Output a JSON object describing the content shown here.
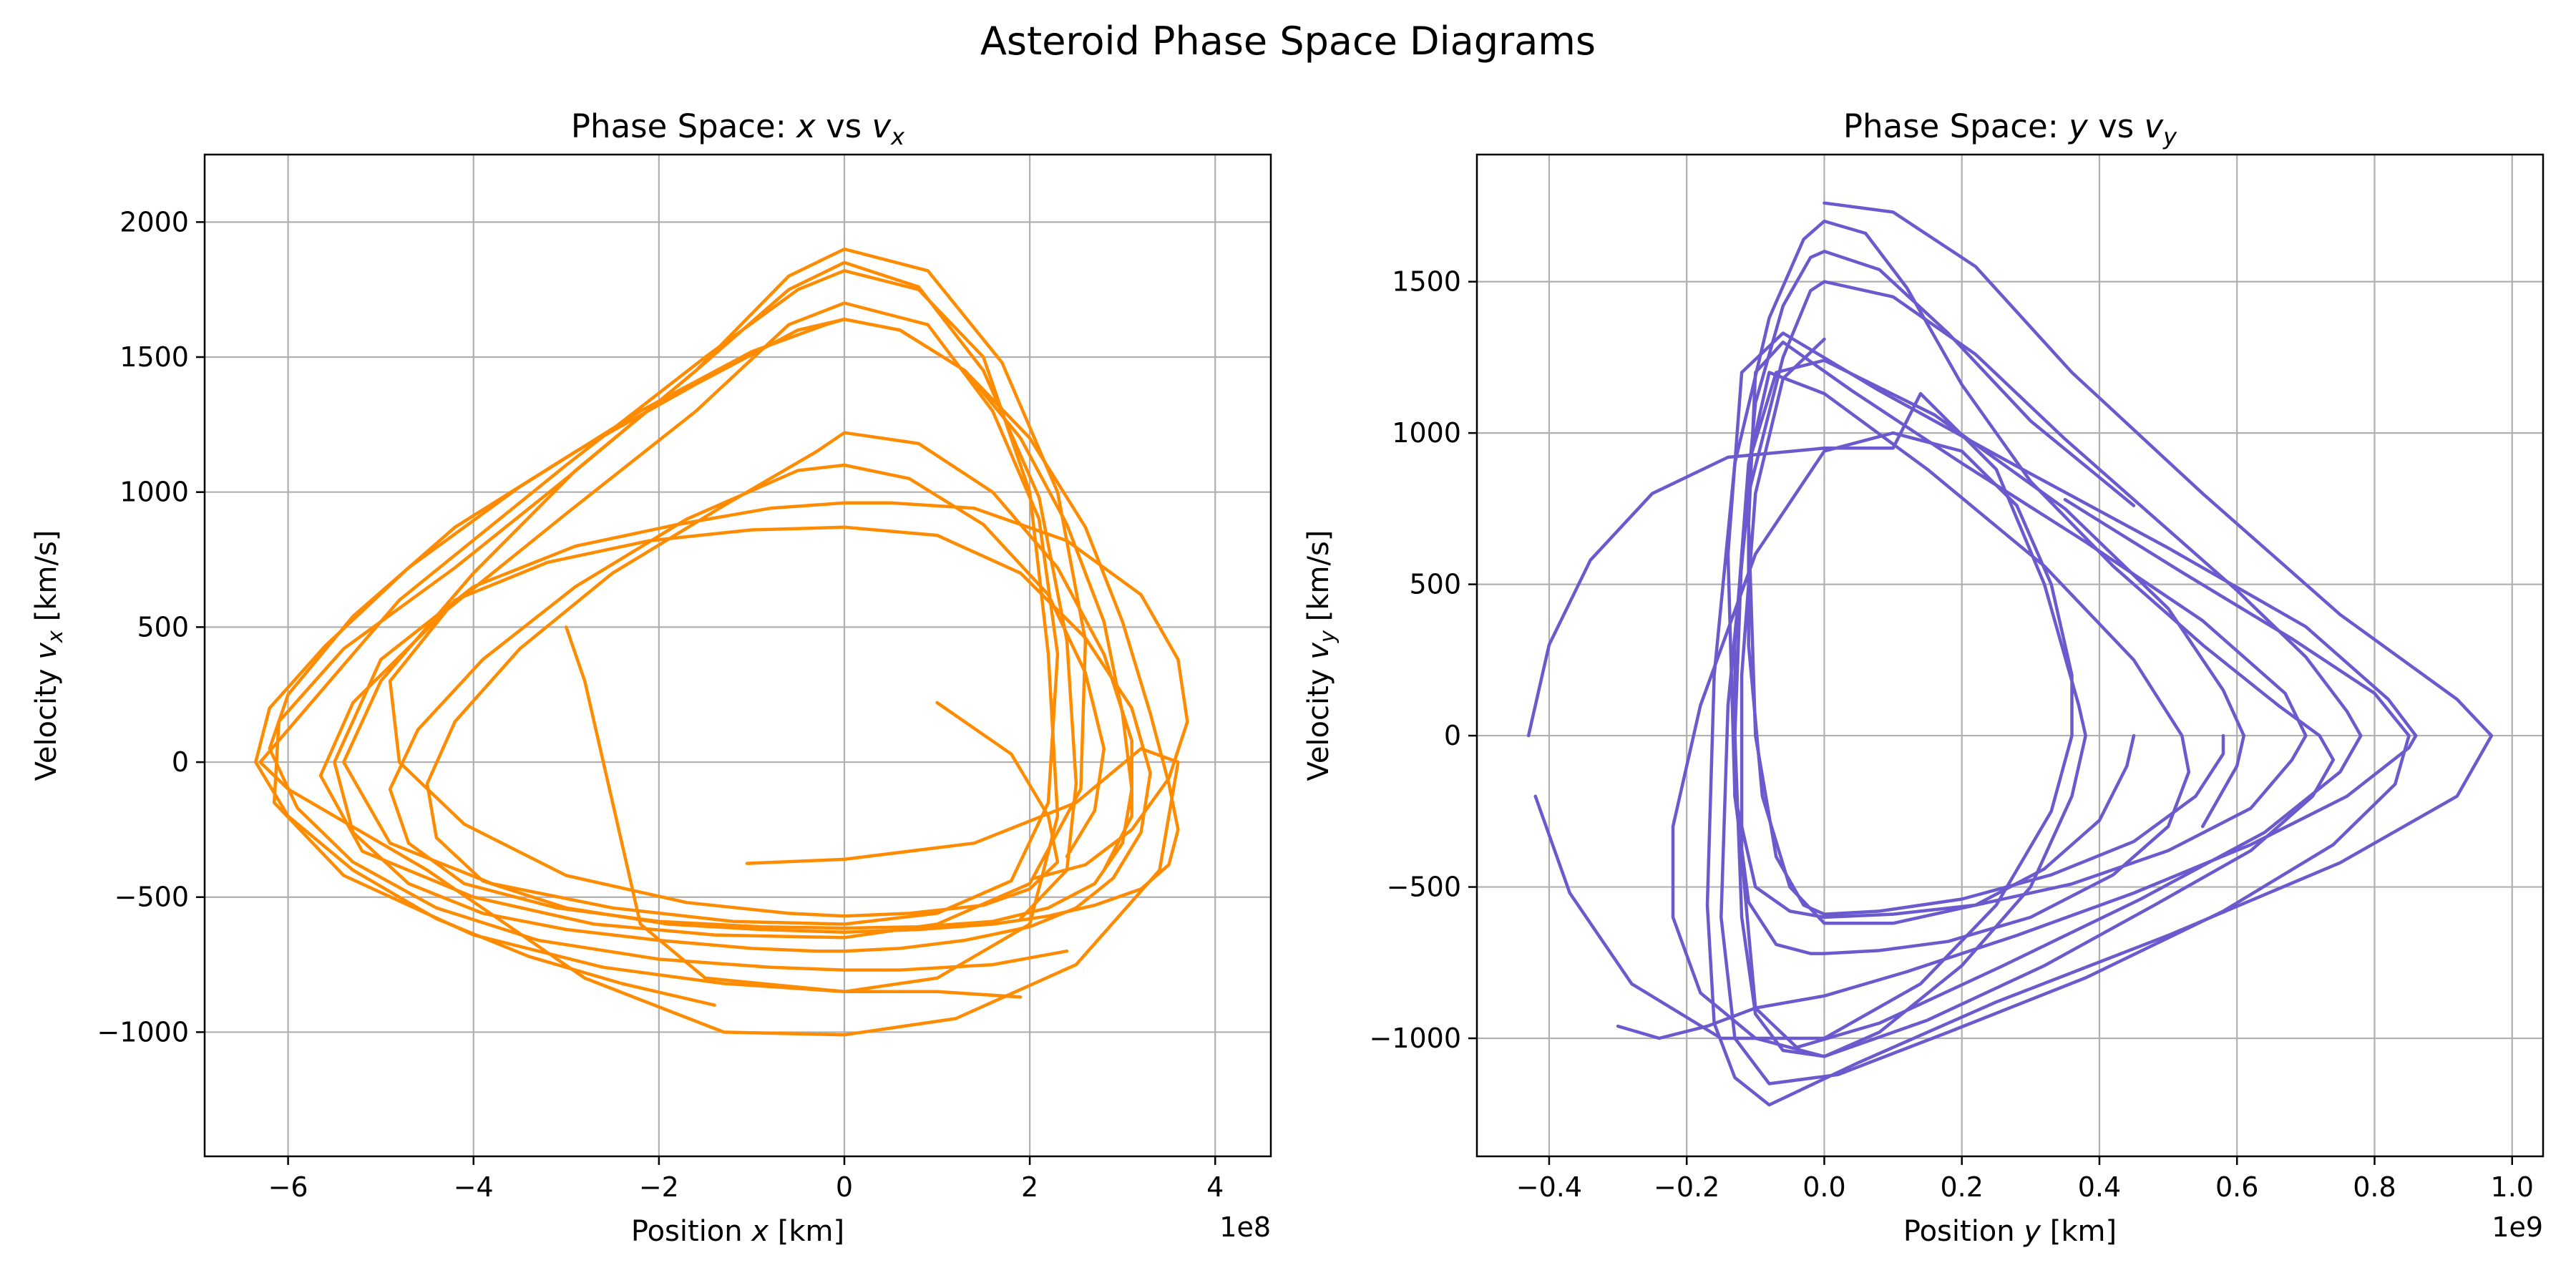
{
  "figure": {
    "suptitle": "Asteroid Phase Space Diagrams"
  },
  "chart_data": [
    {
      "type": "line",
      "title_prefix": "Phase Space: ",
      "title_var": "x",
      "title_mid": " vs ",
      "title_var2": "v",
      "title_sub": "x",
      "xlabel_prefix": "Position ",
      "xlabel_var": "x",
      "xlabel_suffix": " [km]",
      "ylabel_prefix": "Velocity ",
      "ylabel_var": "v",
      "ylabel_sub": "x",
      "ylabel_suffix": " [km/s]",
      "x_offset_text": "1e8",
      "x_scale": 100000000,
      "xlim": [
        -6.9,
        4.6
      ],
      "ylim": [
        -1460,
        2250
      ],
      "xticks": [
        -6,
        -4,
        -2,
        0,
        2,
        4
      ],
      "xtick_labels": [
        "−6",
        "−4",
        "−2",
        "0",
        "2",
        "4"
      ],
      "yticks": [
        -1000,
        -500,
        0,
        500,
        1000,
        1500,
        2000
      ],
      "ytick_labels": [
        "−1000",
        "−500",
        "0",
        "500",
        "1000",
        "1500",
        "2000"
      ],
      "grid": true,
      "color": "#ff8c00",
      "series": [
        {
          "x": [
            -1.05,
            0,
            1.4,
            2.5,
            3.2,
            3.6,
            3.4,
            2.5,
            1.2,
            0,
            -1.3,
            -2.8,
            -4.5,
            -6.0,
            -6.3,
            -5.8,
            -4.8,
            -3.0,
            -1.5,
            -0.5,
            0,
            0.8,
            1.5,
            2.0,
            2.2,
            2.3,
            2.0,
            1.0,
            0,
            -1.5,
            -2.2,
            -2.8,
            -3.0
          ],
          "y": [
            -375,
            -360,
            -300,
            -150,
            50,
            0,
            -400,
            -750,
            -950,
            -1010,
            -1000,
            -800,
            -400,
            -100,
            0,
            200,
            600,
            1100,
            1500,
            1750,
            1820,
            1750,
            1500,
            1000,
            400,
            -200,
            -600,
            -800,
            -850,
            -800,
            -600,
            300,
            500
          ]
        },
        {
          "x": [
            1.9,
            1.0,
            0,
            -1.3,
            -2.6,
            -4.0,
            -5.4,
            -6.15,
            -6.1,
            -5.4,
            -4.2,
            -3.0,
            -1.6,
            -0.6,
            0,
            0.9,
            1.7,
            2.3,
            2.6,
            2.55,
            2.0,
            1.0,
            0,
            -1.4,
            -2.7,
            -4.0,
            -5.2,
            -5.65,
            -5.3,
            -4.3,
            -3.0,
            -1.6,
            -0.6,
            0,
            0.9,
            1.6,
            2.1,
            2.3,
            2.2,
            1.8,
            1.0,
            0,
            -1.2,
            -2.5,
            -3.8,
            -4.9,
            -5.4,
            -5.0,
            -4.0,
            -2.9,
            -1.6,
            -0.6,
            0,
            0.8,
            1.5,
            2.1,
            2.4,
            2.5,
            2.4,
            1.9
          ],
          "y": [
            -870,
            -850,
            -850,
            -820,
            -760,
            -640,
            -420,
            -150,
            150,
            420,
            720,
            1050,
            1450,
            1800,
            1900,
            1820,
            1480,
            1000,
            450,
            -100,
            -450,
            -600,
            -650,
            -640,
            -600,
            -500,
            -330,
            -50,
            220,
            560,
            920,
            1300,
            1620,
            1700,
            1620,
            1300,
            900,
            400,
            -150,
            -440,
            -560,
            -600,
            -590,
            -540,
            -450,
            -300,
            0,
            300,
            700,
            1080,
            1450,
            1750,
            1850,
            1760,
            1450,
            980,
            450,
            -80,
            -400,
            -580
          ]
        },
        {
          "x": [
            2.05,
            2.6,
            3.1,
            3.5,
            3.7,
            3.6,
            3.2,
            2.4,
            1.4,
            0.5,
            0,
            -0.8,
            -1.8,
            -2.9,
            -4.0,
            -5.0,
            -5.5,
            -5.3,
            -4.7,
            -3.9,
            -3.0,
            -2.0,
            -1.0,
            -0.3,
            0,
            0.6,
            1.3,
            2.0,
            2.5,
            2.9,
            3.2,
            3.3,
            3.1,
            2.6,
            1.9,
            1.0,
            0,
            -1.0,
            -2.1,
            -3.2,
            -4.2,
            -4.9,
            -4.8,
            -4.1,
            -3.0,
            -1.7,
            -0.6,
            0,
            0.7,
            1.5,
            2.0,
            2.3,
            2.2,
            1.8,
            1.0
          ],
          "y": [
            -430,
            -380,
            -250,
            -60,
            150,
            380,
            620,
            820,
            940,
            960,
            960,
            940,
            880,
            800,
            650,
            380,
            0,
            -260,
            -450,
            -560,
            -620,
            -660,
            -690,
            -700,
            -700,
            -690,
            -660,
            -610,
            -540,
            -430,
            -260,
            -40,
            200,
            460,
            700,
            840,
            870,
            860,
            820,
            740,
            600,
            300,
            0,
            -230,
            -420,
            -520,
            -560,
            -570,
            -560,
            -530,
            -470,
            -370,
            -200,
            30,
            220
          ]
        },
        {
          "x": [
            2.4,
            1.6,
            0.6,
            0,
            -0.8,
            -2.0,
            -3.3,
            -4.4,
            -5.3,
            -5.9,
            -6.2,
            -6.0,
            -5.3,
            -4.2,
            -2.9,
            -1.6,
            -0.5,
            0,
            0.6,
            1.3,
            2.0,
            2.6,
            3.0,
            3.3,
            3.5,
            3.6,
            3.5,
            3.2,
            2.7,
            2.2,
            1.6,
            0.8,
            0,
            -0.9,
            -1.9,
            -3.0,
            -3.9,
            -4.4,
            -4.5,
            -4.2,
            -3.5,
            -2.5,
            -1.3,
            -0.3,
            0,
            0.8,
            1.6,
            2.3,
            2.8,
            3.1,
            3.1,
            2.8
          ],
          "y": [
            -700,
            -750,
            -770,
            -770,
            -760,
            -730,
            -660,
            -540,
            -370,
            -170,
            50,
            250,
            540,
            870,
            1150,
            1400,
            1600,
            1640,
            1600,
            1450,
            1200,
            870,
            520,
            180,
            -80,
            -250,
            -380,
            -470,
            -530,
            -570,
            -600,
            -620,
            -630,
            -620,
            -600,
            -540,
            -440,
            -280,
            -80,
            150,
            420,
            700,
            950,
            1150,
            1220,
            1180,
            1000,
            720,
            400,
            80,
            -200,
            -400
          ]
        },
        {
          "x": [
            -1.4,
            -2.4,
            -3.4,
            -4.4,
            -5.3,
            -6.0,
            -6.35,
            -6.2,
            -5.6,
            -4.7,
            -3.5,
            -2.2,
            -1.0,
            -0.2,
            0,
            0.6,
            1.3,
            1.9,
            2.4,
            2.8,
            3.0,
            3.1,
            3.0,
            2.7,
            2.2,
            1.6,
            0.8,
            0,
            -0.9,
            -2.0,
            -3.1,
            -4.1,
            -4.7,
            -4.9,
            -4.6,
            -3.9,
            -2.9,
            -1.7,
            -0.5,
            0,
            0.7,
            1.5,
            2.2,
            2.6,
            2.8,
            2.7,
            2.4
          ],
          "y": [
            -900,
            -820,
            -720,
            -580,
            -400,
            -200,
            0,
            200,
            430,
            720,
            1020,
            1300,
            1520,
            1620,
            1640,
            1600,
            1450,
            1200,
            880,
            520,
            180,
            -100,
            -300,
            -450,
            -540,
            -590,
            -610,
            -615,
            -610,
            -590,
            -540,
            -450,
            -300,
            -100,
            120,
            380,
            650,
            900,
            1080,
            1100,
            1050,
            880,
            620,
            330,
            50,
            -180,
            -350
          ]
        }
      ]
    },
    {
      "type": "line",
      "title_prefix": "Phase Space: ",
      "title_var": "y",
      "title_mid": " vs ",
      "title_var2": "v",
      "title_sub": "y",
      "xlabel_prefix": "Position ",
      "xlabel_var": "y",
      "xlabel_suffix": " [km]",
      "ylabel_prefix": "Velocity ",
      "ylabel_var": "v",
      "ylabel_sub": "y",
      "ylabel_suffix": " [km/s]",
      "x_offset_text": "1e9",
      "x_scale": 1000000000,
      "xlim": [
        -0.505,
        1.045
      ],
      "ylim": [
        -1390,
        1920
      ],
      "xticks": [
        -0.4,
        -0.2,
        0.0,
        0.2,
        0.4,
        0.6,
        0.8,
        1.0
      ],
      "xtick_labels": [
        "−0.4",
        "−0.2",
        "0.0",
        "0.2",
        "0.4",
        "0.6",
        "0.8",
        "1.0"
      ],
      "yticks": [
        -1000,
        -500,
        0,
        500,
        1000,
        1500
      ],
      "ytick_labels": [
        "−1000",
        "−500",
        "0",
        "500",
        "1000",
        "1500"
      ],
      "grid": true,
      "color": "#6a5acd",
      "series": [
        {
          "x": [
            0,
            0.1,
            0.22,
            0.36,
            0.55,
            0.75,
            0.92,
            0.97,
            0.92,
            0.75,
            0.5,
            0.25,
            0.05,
            -0.08,
            -0.13,
            -0.16,
            -0.17,
            -0.16,
            -0.13,
            -0.08,
            -0.03,
            0,
            0.06,
            0.12,
            0.2,
            0.3,
            0.42,
            0.55,
            0.66,
            0.72,
            0.74,
            0.71,
            0.62,
            0.48,
            0.32,
            0.15,
            0,
            -0.06,
            -0.1,
            -0.12,
            -0.13,
            -0.12,
            -0.1,
            -0.06,
            -0.02,
            0,
            0.08,
            0.18,
            0.3,
            0.45
          ],
          "y": [
            1760,
            1730,
            1550,
            1200,
            800,
            400,
            120,
            0,
            -200,
            -420,
            -660,
            -880,
            -1080,
            -1220,
            -1130,
            -950,
            -560,
            200,
            900,
            1380,
            1640,
            1700,
            1660,
            1480,
            1160,
            840,
            560,
            300,
            100,
            0,
            -80,
            -200,
            -380,
            -560,
            -760,
            -940,
            -1060,
            -1040,
            -920,
            -600,
            0,
            600,
            1100,
            1420,
            1580,
            1600,
            1540,
            1330,
            1040,
            760
          ]
        },
        {
          "x": [
            -0.3,
            -0.24,
            -0.17,
            -0.1,
            0,
            0.12,
            0.28,
            0.45,
            0.62,
            0.76,
            0.85,
            0.86,
            0.82,
            0.7,
            0.5,
            0.28,
            0.08,
            -0.06,
            -0.12,
            -0.14,
            -0.13,
            -0.1,
            -0.05,
            0,
            0.1,
            0.22,
            0.36,
            0.5,
            0.62,
            0.68,
            0.7,
            0.67,
            0.55,
            0.38,
            0.2,
            0.04,
            -0.06,
            -0.1,
            -0.11,
            -0.1,
            -0.07,
            -0.03,
            0,
            0.08,
            0.2,
            0.33,
            0.45,
            0.54,
            0.58,
            0.58
          ],
          "y": [
            -960,
            -1000,
            -960,
            -900,
            -860,
            -780,
            -660,
            -520,
            -360,
            -200,
            -40,
            0,
            120,
            360,
            620,
            890,
            1140,
            1330,
            1200,
            600,
            -200,
            -500,
            -580,
            -600,
            -590,
            -560,
            -490,
            -380,
            -240,
            -80,
            0,
            140,
            380,
            640,
            900,
            1140,
            1300,
            1200,
            700,
            0,
            -400,
            -560,
            -590,
            -580,
            -540,
            -460,
            -350,
            -200,
            -60,
            0
          ]
        },
        {
          "x": [
            -0.43,
            -0.4,
            -0.34,
            -0.25,
            -0.14,
            0,
            0.1,
            0.14,
            0.25,
            0.32,
            0.37,
            0.38,
            0.36,
            0.3,
            0.2,
            0.08,
            0,
            -0.1,
            -0.18,
            -0.22,
            -0.22,
            -0.18,
            -0.1,
            0,
            0.1,
            0.2,
            0.28,
            0.33,
            0.36,
            0.36,
            0.33,
            0.25,
            0.14,
            0,
            -0.15,
            -0.28,
            -0.37,
            -0.42
          ],
          "y": [
            0,
            300,
            580,
            800,
            920,
            950,
            950,
            1130,
            880,
            500,
            100,
            0,
            -200,
            -500,
            -760,
            -980,
            -1060,
            -1000,
            -850,
            -600,
            -300,
            100,
            600,
            940,
            1000,
            940,
            760,
            500,
            200,
            0,
            -250,
            -560,
            -820,
            -1000,
            -1000,
            -820,
            -520,
            -200
          ]
        },
        {
          "x": [
            0.55,
            0.6,
            0.61,
            0.58,
            0.5,
            0.35,
            0.16,
            0,
            -0.07,
            -0.11,
            -0.13,
            -0.13,
            -0.11,
            -0.07,
            -0.02,
            0,
            0.08,
            0.18,
            0.3,
            0.42,
            0.5,
            0.53,
            0.52,
            0.45,
            0.32,
            0.15,
            0,
            -0.08,
            -0.11,
            -0.11,
            -0.09,
            -0.05,
            0,
            0.1,
            0.22,
            0.32,
            0.4,
            0.44,
            0.45
          ],
          "y": [
            -300,
            -100,
            0,
            150,
            420,
            750,
            1060,
            1240,
            1200,
            900,
            300,
            -200,
            -550,
            -690,
            -720,
            -720,
            -710,
            -680,
            -600,
            -460,
            -300,
            -120,
            0,
            250,
            560,
            880,
            1130,
            1200,
            900,
            300,
            -200,
            -500,
            -620,
            -620,
            -560,
            -440,
            -280,
            -100,
            0
          ]
        },
        {
          "x": [
            0.35,
            0.52,
            0.68,
            0.8,
            0.85,
            0.83,
            0.74,
            0.58,
            0.38,
            0.18,
            0.02,
            -0.08,
            -0.13,
            -0.15,
            -0.14,
            -0.11,
            -0.06,
            -0.02,
            0,
            0.1,
            0.22,
            0.35,
            0.48,
            0.6,
            0.7,
            0.76,
            0.78,
            0.75,
            0.64,
            0.46,
            0.26,
            0.08,
            -0.04,
            -0.1,
            -0.12,
            -0.12,
            -0.1,
            -0.06,
            0
          ],
          "y": [
            780,
            540,
            320,
            140,
            0,
            -160,
            -360,
            -580,
            -800,
            -980,
            -1120,
            -1150,
            -1000,
            -600,
            100,
            800,
            1250,
            1470,
            1500,
            1450,
            1260,
            980,
            720,
            480,
            260,
            80,
            0,
            -120,
            -320,
            -540,
            -760,
            -950,
            -1030,
            -900,
            -400,
            200,
            800,
            1180,
            1310
          ]
        }
      ]
    }
  ]
}
